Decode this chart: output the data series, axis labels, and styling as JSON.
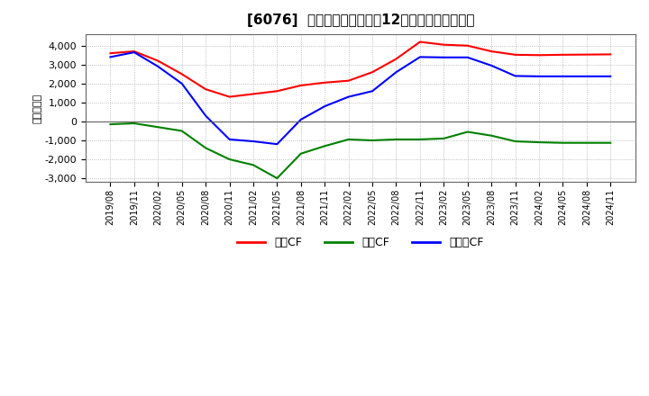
{
  "title": "[6076]  キャッシュフローの12か月移動合計の推移",
  "ylabel": "（百万円）",
  "ylim": [
    -3200,
    4600
  ],
  "yticks": [
    -3000,
    -2000,
    -1000,
    0,
    1000,
    2000,
    3000,
    4000
  ],
  "background_color": "#ffffff",
  "plot_bg_color": "#ffffff",
  "x_labels": [
    "2019/08",
    "2019/11",
    "2020/02",
    "2020/05",
    "2020/08",
    "2020/11",
    "2021/02",
    "2021/05",
    "2021/08",
    "2021/11",
    "2022/02",
    "2022/05",
    "2022/08",
    "2022/11",
    "2023/02",
    "2023/05",
    "2023/08",
    "2023/11",
    "2024/02",
    "2024/05",
    "2024/08",
    "2024/11"
  ],
  "operating_cf": [
    3600,
    3700,
    3200,
    2500,
    1700,
    1300,
    1450,
    1600,
    1900,
    2050,
    2150,
    2600,
    3300,
    4200,
    4050,
    4000,
    3700,
    3520,
    3500,
    3520,
    3530,
    3540
  ],
  "investing_cf": [
    -150,
    -100,
    -300,
    -500,
    -1400,
    -2000,
    -2300,
    -3000,
    -1700,
    -1300,
    -950,
    -1000,
    -950,
    -950,
    -900,
    -550,
    -750,
    -1050,
    -1100,
    -1130,
    -1130,
    -1130
  ],
  "free_cf": [
    3400,
    3650,
    2900,
    2000,
    300,
    -950,
    -1050,
    -1200,
    100,
    800,
    1300,
    1600,
    2600,
    3400,
    3380,
    3380,
    2950,
    2400,
    2380,
    2380,
    2380,
    2380
  ],
  "color_operating": "#ff0000",
  "color_investing": "#008000",
  "color_free": "#0000ff",
  "legend_labels": [
    "営業CF",
    "投資CF",
    "フリーCF"
  ],
  "line_width": 1.5
}
